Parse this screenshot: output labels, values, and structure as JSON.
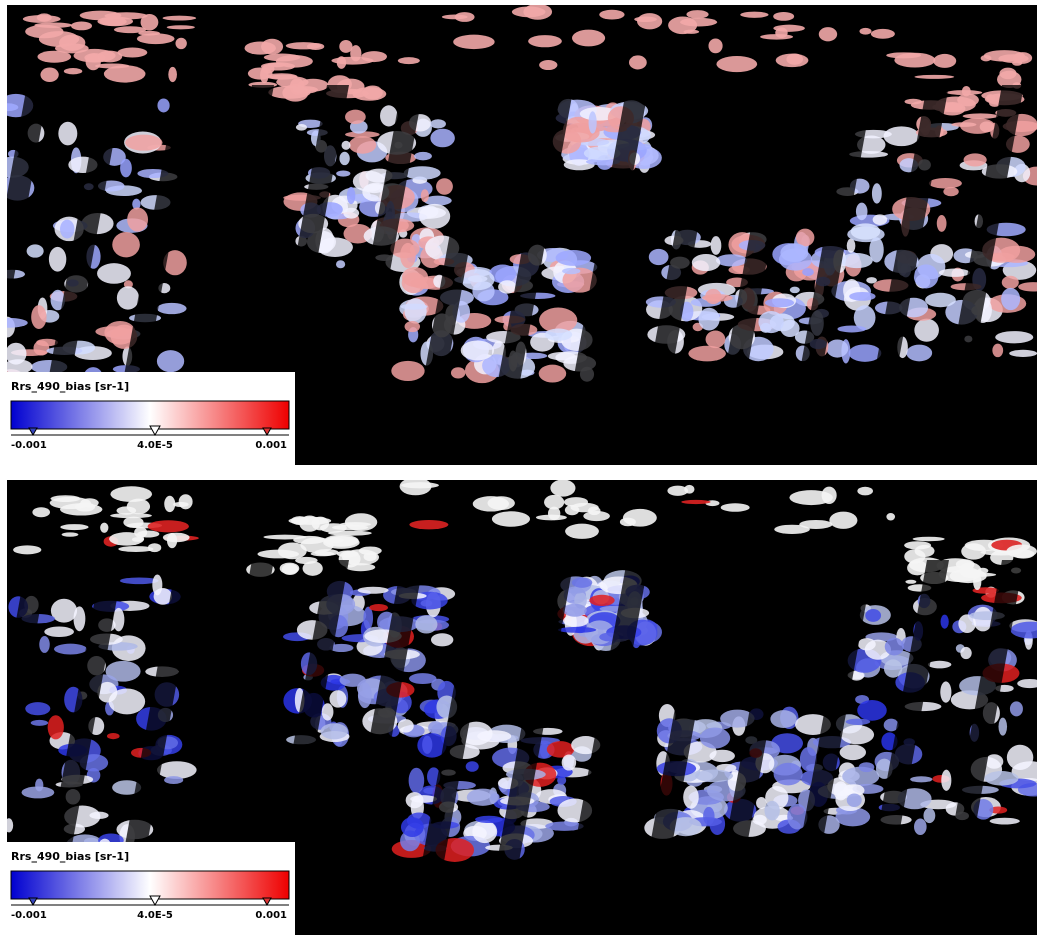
{
  "panels": [
    {
      "legend": {
        "title": "Rrs_490_bias [sr-1]",
        "ticks": [
          "-0.001",
          "4.0E-5",
          "0.001"
        ]
      }
    },
    {
      "legend": {
        "title": "Rrs_490_bias [sr-1]",
        "ticks": [
          "-0.001",
          "4.0E-5",
          "0.001"
        ]
      }
    }
  ]
}
